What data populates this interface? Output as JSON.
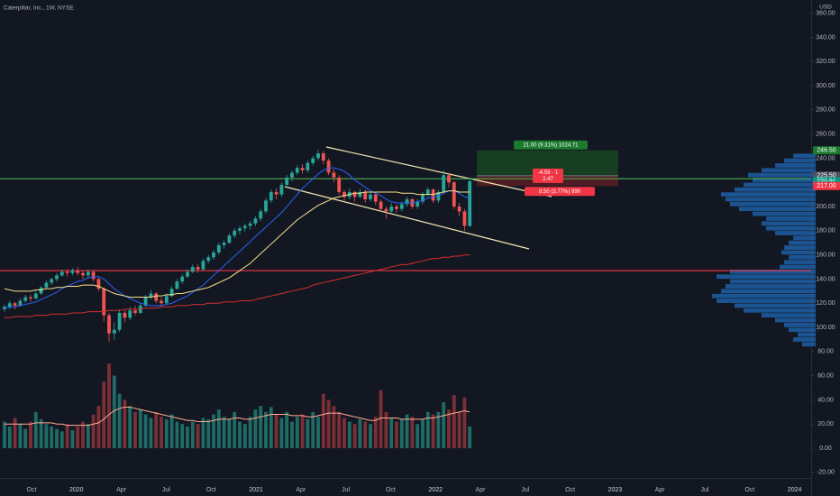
{
  "chart_data": {
    "type": "candlestick",
    "title": "Caterpillar, Inc., 1W, NYSE",
    "currency": "USD",
    "ylim": [
      -24.6,
      370.9
    ],
    "yticks": [
      {
        "value": 360,
        "label": "360.00"
      },
      {
        "value": 340,
        "label": "340.00"
      },
      {
        "value": 320,
        "label": "320.00"
      },
      {
        "value": 300,
        "label": "300.00"
      },
      {
        "value": 280,
        "label": "280.00"
      },
      {
        "value": 260,
        "label": "260.00"
      },
      {
        "value": 240,
        "label": "240.00"
      },
      {
        "value": 220,
        "label": "220.00"
      },
      {
        "value": 200,
        "label": "200.00"
      },
      {
        "value": 180,
        "label": "180.00"
      },
      {
        "value": 160,
        "label": "160.00"
      },
      {
        "value": 140,
        "label": "140.00"
      },
      {
        "value": 120,
        "label": "120.00"
      },
      {
        "value": 100,
        "label": "100.00"
      },
      {
        "value": 80,
        "label": "80.00"
      },
      {
        "value": 60,
        "label": "60.00"
      },
      {
        "value": 40,
        "label": "40.00"
      },
      {
        "value": 20,
        "label": "20.00"
      },
      {
        "value": 0,
        "label": "0.00"
      },
      {
        "value": -20,
        "label": "-20.00"
      }
    ],
    "xlabels": [
      "Oct",
      "2020",
      "Apr",
      "Jul",
      "Oct",
      "2021",
      "Apr",
      "Jul",
      "Oct",
      "2022",
      "Apr",
      "Jul",
      "Oct",
      "2023",
      "Apr",
      "Jul",
      "Oct",
      "2024"
    ],
    "up_color": "#26a69a",
    "down_color": "#ef5350",
    "volume_up_color": "#1f6b66",
    "volume_down_color": "#7d2f36",
    "candles": [
      [
        115,
        119,
        113,
        117
      ],
      [
        117,
        122,
        115,
        120
      ],
      [
        120,
        121,
        115,
        118
      ],
      [
        118,
        124,
        117,
        122
      ],
      [
        122,
        127,
        120,
        125
      ],
      [
        125,
        127,
        121,
        124
      ],
      [
        124,
        130,
        123,
        128
      ],
      [
        128,
        134,
        127,
        133
      ],
      [
        133,
        139,
        132,
        137
      ],
      [
        137,
        141,
        135,
        140
      ],
      [
        140,
        145,
        138,
        143
      ],
      [
        143,
        148,
        142,
        146
      ],
      [
        146,
        148,
        142,
        145
      ],
      [
        145,
        149,
        143,
        147
      ],
      [
        147,
        150,
        143,
        145
      ],
      [
        145,
        147,
        140,
        143
      ],
      [
        143,
        148,
        141,
        146
      ],
      [
        146,
        147,
        138,
        140
      ],
      [
        140,
        141,
        130,
        132
      ],
      [
        132,
        133,
        105,
        110
      ],
      [
        110,
        112,
        88,
        95
      ],
      [
        95,
        104,
        90,
        98
      ],
      [
        98,
        115,
        96,
        112
      ],
      [
        112,
        114,
        104,
        108
      ],
      [
        108,
        117,
        106,
        114
      ],
      [
        114,
        118,
        110,
        112
      ],
      [
        112,
        120,
        111,
        118
      ],
      [
        118,
        127,
        117,
        125
      ],
      [
        125,
        131,
        123,
        128
      ],
      [
        128,
        129,
        120,
        122
      ],
      [
        122,
        125,
        118,
        120
      ],
      [
        120,
        128,
        119,
        126
      ],
      [
        126,
        134,
        125,
        132
      ],
      [
        132,
        140,
        131,
        138
      ],
      [
        138,
        144,
        136,
        142
      ],
      [
        142,
        148,
        141,
        146
      ],
      [
        146,
        152,
        145,
        150
      ],
      [
        150,
        152,
        145,
        148
      ],
      [
        148,
        157,
        147,
        155
      ],
      [
        155,
        160,
        153,
        158
      ],
      [
        158,
        164,
        156,
        162
      ],
      [
        162,
        170,
        160,
        168
      ],
      [
        168,
        172,
        165,
        170
      ],
      [
        170,
        178,
        169,
        176
      ],
      [
        176,
        182,
        174,
        180
      ],
      [
        180,
        184,
        177,
        182
      ],
      [
        182,
        186,
        179,
        184
      ],
      [
        184,
        188,
        181,
        186
      ],
      [
        186,
        192,
        184,
        190
      ],
      [
        190,
        198,
        188,
        196
      ],
      [
        196,
        207,
        194,
        205
      ],
      [
        205,
        214,
        203,
        212
      ],
      [
        212,
        215,
        206,
        210
      ],
      [
        210,
        220,
        208,
        218
      ],
      [
        218,
        226,
        216,
        224
      ],
      [
        224,
        230,
        221,
        228
      ],
      [
        228,
        234,
        226,
        232
      ],
      [
        232,
        235,
        227,
        230
      ],
      [
        230,
        238,
        228,
        236
      ],
      [
        236,
        242,
        234,
        240
      ],
      [
        240,
        247,
        238,
        244
      ],
      [
        244,
        246,
        235,
        238
      ],
      [
        238,
        240,
        226,
        228
      ],
      [
        228,
        231,
        220,
        224
      ],
      [
        224,
        226,
        210,
        212
      ],
      [
        212,
        214,
        205,
        208
      ],
      [
        208,
        215,
        206,
        212
      ],
      [
        212,
        213,
        204,
        208
      ],
      [
        208,
        215,
        207,
        212
      ],
      [
        212,
        214,
        203,
        206
      ],
      [
        206,
        212,
        204,
        210
      ],
      [
        210,
        211,
        201,
        204
      ],
      [
        204,
        206,
        196,
        198
      ],
      [
        198,
        200,
        190,
        196
      ],
      [
        196,
        203,
        194,
        200
      ],
      [
        200,
        202,
        195,
        198
      ],
      [
        198,
        204,
        196,
        202
      ],
      [
        202,
        208,
        200,
        206
      ],
      [
        206,
        207,
        198,
        200
      ],
      [
        200,
        206,
        198,
        204
      ],
      [
        204,
        212,
        202,
        210
      ],
      [
        210,
        216,
        208,
        214
      ],
      [
        214,
        215,
        203,
        205
      ],
      [
        205,
        214,
        203,
        212
      ],
      [
        212,
        230,
        210,
        226
      ],
      [
        226,
        228,
        216,
        220
      ],
      [
        220,
        221,
        198,
        200
      ],
      [
        200,
        203,
        192,
        196
      ],
      [
        196,
        198,
        180,
        184
      ],
      [
        184,
        224,
        183,
        220.91
      ]
    ],
    "volume": [
      22,
      18,
      25,
      20,
      16,
      22,
      30,
      24,
      20,
      18,
      16,
      14,
      20,
      15,
      18,
      22,
      20,
      28,
      35,
      55,
      70,
      60,
      45,
      40,
      35,
      30,
      32,
      28,
      25,
      30,
      26,
      24,
      28,
      22,
      20,
      18,
      22,
      20,
      25,
      24,
      28,
      32,
      26,
      24,
      30,
      22,
      20,
      26,
      32,
      35,
      30,
      34,
      28,
      25,
      30,
      22,
      26,
      28,
      24,
      30,
      26,
      45,
      40,
      35,
      30,
      25,
      22,
      20,
      24,
      22,
      20,
      26,
      48,
      30,
      25,
      22,
      24,
      28,
      26,
      20,
      24,
      30,
      28,
      30,
      38,
      32,
      44,
      30,
      42,
      18
    ],
    "lines": [
      {
        "color": "#2962ff",
        "values": [
          116,
          117,
          117,
          118,
          119,
          120,
          121,
          123,
          125,
          127,
          129,
          132,
          134,
          136,
          138,
          139,
          141,
          142,
          142,
          140,
          136,
          132,
          129,
          126,
          124,
          122,
          120,
          119,
          118,
          118,
          118,
          119,
          120,
          122,
          124,
          126,
          129,
          132,
          135,
          139,
          143,
          147,
          151,
          155,
          159,
          163,
          167,
          171,
          175,
          179,
          183,
          187,
          191,
          195,
          200,
          205,
          210,
          215,
          219,
          223,
          227,
          230,
          232,
          232,
          231,
          229,
          226,
          222,
          219,
          216,
          213,
          211,
          209,
          206,
          204,
          203,
          203,
          203,
          203,
          204,
          205,
          207,
          208,
          209,
          211,
          213,
          213,
          211,
          208,
          207
        ]
      },
      {
        "color": "#f7e08a",
        "values": [
          132,
          131,
          130,
          130,
          130,
          130,
          131,
          131,
          132,
          132,
          133,
          133,
          134,
          134,
          134,
          135,
          135,
          135,
          134,
          132,
          130,
          128,
          127,
          126,
          125,
          125,
          125,
          125,
          125,
          126,
          126,
          127,
          127,
          128,
          128,
          129,
          130,
          131,
          132,
          133,
          135,
          137,
          139,
          141,
          144,
          147,
          150,
          153,
          157,
          161,
          165,
          169,
          173,
          177,
          181,
          185,
          189,
          192,
          195,
          198,
          201,
          203,
          205,
          207,
          208,
          209,
          210,
          211,
          211,
          212,
          212,
          212,
          212,
          212,
          212,
          212,
          211,
          211,
          211,
          210,
          210,
          210,
          210,
          211,
          212,
          213,
          213,
          212,
          212,
          212
        ]
      },
      {
        "color": "#d32f2f",
        "values": [
          108,
          108,
          109,
          109,
          109,
          109,
          110,
          110,
          110,
          111,
          111,
          111,
          111,
          112,
          112,
          112,
          113,
          113,
          113,
          113,
          114,
          114,
          114,
          115,
          115,
          115,
          115,
          116,
          116,
          116,
          117,
          117,
          117,
          118,
          118,
          118,
          119,
          119,
          119,
          120,
          120,
          120,
          121,
          121,
          121,
          122,
          122,
          122,
          123,
          124,
          125,
          126,
          127,
          128,
          129,
          130,
          131,
          132,
          133,
          135,
          136,
          137,
          138,
          139,
          140,
          141,
          142,
          143,
          144,
          145,
          146,
          147,
          148,
          149,
          150,
          151,
          152,
          152,
          153,
          154,
          155,
          156,
          157,
          157,
          158,
          158,
          159,
          159,
          160,
          160
        ]
      },
      {
        "color": "#ffab91",
        "values": [
          20,
          20,
          20,
          20,
          20,
          20,
          21,
          21,
          21,
          21,
          20,
          20,
          19,
          19,
          19,
          19,
          19,
          20,
          21,
          24,
          28,
          31,
          33,
          34,
          34,
          33,
          32,
          31,
          30,
          29,
          28,
          27,
          26,
          25,
          24,
          23,
          23,
          22,
          22,
          22,
          23,
          24,
          24,
          24,
          25,
          25,
          24,
          24,
          25,
          26,
          27,
          28,
          28,
          28,
          28,
          27,
          27,
          27,
          26,
          26,
          27,
          28,
          29,
          29,
          29,
          28,
          27,
          26,
          25,
          24,
          23,
          23,
          25,
          25,
          25,
          25,
          24,
          24,
          24,
          24,
          24,
          25,
          25,
          26,
          27,
          28,
          29,
          30,
          31,
          30
        ]
      }
    ],
    "levels": [
      {
        "value": 223,
        "color": "#4caf50"
      },
      {
        "value": 147,
        "color": "#f23645"
      }
    ],
    "profile_color": "#1f5fa6",
    "profile": {
      "prices": [
        86,
        90,
        94,
        98,
        102,
        106,
        110,
        114,
        118,
        122,
        126,
        130,
        134,
        138,
        142,
        146,
        150,
        154,
        158,
        162,
        166,
        170,
        174,
        178,
        182,
        186,
        190,
        194,
        198,
        202,
        206,
        210,
        214,
        218,
        222,
        226,
        230,
        234,
        238,
        242
      ],
      "values": [
        15,
        25,
        20,
        30,
        35,
        45,
        60,
        80,
        90,
        110,
        115,
        105,
        100,
        95,
        110,
        95,
        40,
        35,
        30,
        38,
        35,
        30,
        25,
        45,
        55,
        60,
        55,
        70,
        85,
        95,
        100,
        105,
        90,
        80,
        70,
        75,
        60,
        45,
        35,
        25
      ]
    },
    "badges": [
      {
        "value": 246.5,
        "label": "246.50",
        "color": "#1b7a2e"
      },
      {
        "value": 225.5,
        "label": "225.50",
        "color": "#50535e"
      },
      {
        "value": 220.91,
        "label": "220.91",
        "color": "#089981"
      },
      {
        "value": 217,
        "label": "217.00",
        "color": "#f23645"
      }
    ],
    "position": {
      "target_text": "21.00 (9.31%) 1024.71",
      "ratio_text": "-4.59 · 1",
      "ratio_sub": "2.47",
      "stop_text": "8.50 (3.77%) 990"
    }
  }
}
